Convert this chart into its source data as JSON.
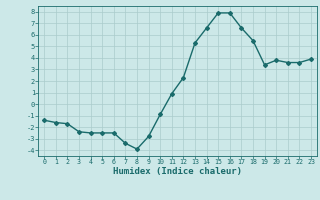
{
  "x": [
    0,
    1,
    2,
    3,
    4,
    5,
    6,
    7,
    8,
    9,
    10,
    11,
    12,
    13,
    14,
    15,
    16,
    17,
    18,
    19,
    20,
    21,
    22,
    23
  ],
  "y": [
    -1.4,
    -1.6,
    -1.7,
    -2.4,
    -2.5,
    -2.5,
    -2.5,
    -3.4,
    -3.9,
    -2.8,
    -0.9,
    0.9,
    2.3,
    5.3,
    6.6,
    7.9,
    7.9,
    6.6,
    5.5,
    3.4,
    3.8,
    3.6,
    3.6,
    3.9
  ],
  "line_color": "#1a6b6b",
  "bg_color": "#cce8e8",
  "grid_color": "#aacccc",
  "xlabel": "Humidex (Indice chaleur)",
  "ylim": [
    -4.5,
    8.5
  ],
  "xlim": [
    -0.5,
    23.5
  ],
  "yticks": [
    -4,
    -3,
    -2,
    -1,
    0,
    1,
    2,
    3,
    4,
    5,
    6,
    7,
    8
  ],
  "xticks": [
    0,
    1,
    2,
    3,
    4,
    5,
    6,
    7,
    8,
    9,
    10,
    11,
    12,
    13,
    14,
    15,
    16,
    17,
    18,
    19,
    20,
    21,
    22,
    23
  ],
  "tick_color": "#1a6b6b",
  "label_fontsize": 6.5,
  "marker": "D",
  "marker_size": 2.0,
  "line_width": 1.0
}
